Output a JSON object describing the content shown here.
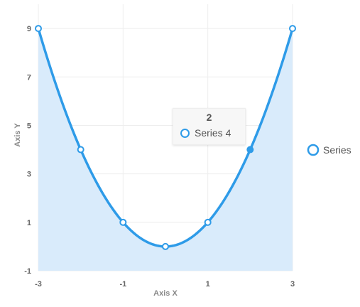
{
  "chart_data": {
    "type": "area",
    "xlabel": "Axis X",
    "ylabel": "Axis Y",
    "xlim": [
      -3,
      3
    ],
    "ylim": [
      -1,
      10
    ],
    "x_ticks": [
      "-3",
      "-1",
      "1",
      "3"
    ],
    "y_ticks": [
      "-1",
      "1",
      "3",
      "5",
      "7",
      "9"
    ],
    "grid": true,
    "legend_position": "right",
    "series": [
      {
        "name": "Series",
        "x": [
          -3,
          -2,
          -1,
          0,
          1,
          2,
          3
        ],
        "values": [
          9,
          4,
          1,
          0,
          1,
          4,
          9
        ]
      }
    ],
    "tooltip": {
      "x_value": "2",
      "series_label": "Series 4"
    },
    "hovered_point_index": 5
  },
  "colors": {
    "line": "#2e9be8",
    "fill": "#d9ebfb",
    "grid": "#eeeeee"
  }
}
